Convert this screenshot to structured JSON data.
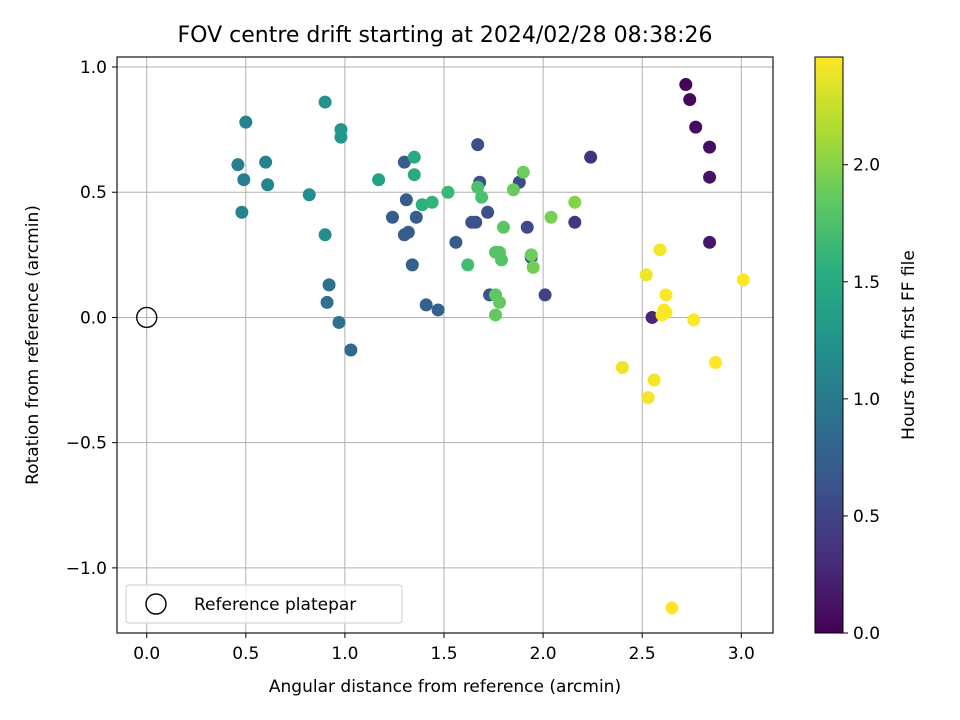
{
  "chart_data": {
    "type": "scatter",
    "title": "FOV centre drift starting at 2024/02/28 08:38:26",
    "xlabel": "Angular distance from reference (arcmin)",
    "ylabel": "Rotation from reference (arcmin)",
    "xlim": [
      -0.15,
      3.16
    ],
    "ylim": [
      -1.26,
      1.04
    ],
    "xticks": [
      0.0,
      0.5,
      1.0,
      1.5,
      2.0,
      2.5,
      3.0
    ],
    "xtick_labels": [
      "0.0",
      "0.5",
      "1.0",
      "1.5",
      "2.0",
      "2.5",
      "3.0"
    ],
    "yticks": [
      -1.0,
      -0.5,
      0.0,
      0.5,
      1.0
    ],
    "ytick_labels": [
      "−1.0",
      "−0.5",
      "0.0",
      "0.5",
      "1.0"
    ],
    "grid": true,
    "colormap": "viridis",
    "colorbar": {
      "label": "Hours from first FF file",
      "min": 0.0,
      "max": 2.46,
      "ticks": [
        0.0,
        0.5,
        1.0,
        1.5,
        2.0
      ],
      "tick_labels": [
        "0.0",
        "0.5",
        "1.0",
        "1.5",
        "2.0"
      ]
    },
    "reference": {
      "label": "Reference platepar",
      "x": 0.0,
      "y": 0.0
    },
    "legend": {
      "entries": [
        "Reference platepar"
      ],
      "location": "lower-left"
    },
    "points": [
      {
        "x": 2.72,
        "y": 0.93,
        "h": 0.02
      },
      {
        "x": 2.74,
        "y": 0.87,
        "h": 0.05
      },
      {
        "x": 2.77,
        "y": 0.76,
        "h": 0.08
      },
      {
        "x": 2.84,
        "y": 0.68,
        "h": 0.1
      },
      {
        "x": 2.84,
        "y": 0.56,
        "h": 0.12
      },
      {
        "x": 2.84,
        "y": 0.3,
        "h": 0.15
      },
      {
        "x": 2.55,
        "y": 0.0,
        "h": 0.25
      },
      {
        "x": 2.24,
        "y": 0.64,
        "h": 0.35
      },
      {
        "x": 2.16,
        "y": 0.38,
        "h": 0.4
      },
      {
        "x": 2.01,
        "y": 0.09,
        "h": 0.5
      },
      {
        "x": 1.94,
        "y": 0.24,
        "h": 0.55
      },
      {
        "x": 1.92,
        "y": 0.36,
        "h": 0.55
      },
      {
        "x": 1.88,
        "y": 0.54,
        "h": 0.55
      },
      {
        "x": 1.67,
        "y": 0.69,
        "h": 0.6
      },
      {
        "x": 1.68,
        "y": 0.54,
        "h": 0.6
      },
      {
        "x": 1.72,
        "y": 0.42,
        "h": 0.6
      },
      {
        "x": 1.64,
        "y": 0.38,
        "h": 0.62
      },
      {
        "x": 1.66,
        "y": 0.38,
        "h": 0.62
      },
      {
        "x": 1.73,
        "y": 0.09,
        "h": 0.65
      },
      {
        "x": 1.56,
        "y": 0.3,
        "h": 0.7
      },
      {
        "x": 1.47,
        "y": 0.03,
        "h": 0.75
      },
      {
        "x": 1.41,
        "y": 0.05,
        "h": 0.75
      },
      {
        "x": 1.3,
        "y": 0.62,
        "h": 0.7
      },
      {
        "x": 1.31,
        "y": 0.47,
        "h": 0.7
      },
      {
        "x": 1.24,
        "y": 0.4,
        "h": 0.7
      },
      {
        "x": 1.36,
        "y": 0.4,
        "h": 0.72
      },
      {
        "x": 1.32,
        "y": 0.34,
        "h": 0.72
      },
      {
        "x": 1.3,
        "y": 0.33,
        "h": 0.72
      },
      {
        "x": 1.34,
        "y": 0.21,
        "h": 0.75
      },
      {
        "x": 1.03,
        "y": -0.13,
        "h": 0.85
      },
      {
        "x": 0.97,
        "y": -0.02,
        "h": 0.9
      },
      {
        "x": 0.91,
        "y": 0.06,
        "h": 0.9
      },
      {
        "x": 0.92,
        "y": 0.13,
        "h": 0.9
      },
      {
        "x": 0.46,
        "y": 0.61,
        "h": 1.05
      },
      {
        "x": 0.49,
        "y": 0.55,
        "h": 1.05
      },
      {
        "x": 0.5,
        "y": 0.78,
        "h": 1.1
      },
      {
        "x": 0.6,
        "y": 0.62,
        "h": 1.1
      },
      {
        "x": 0.61,
        "y": 0.53,
        "h": 1.12
      },
      {
        "x": 0.48,
        "y": 0.42,
        "h": 1.12
      },
      {
        "x": 0.82,
        "y": 0.49,
        "h": 1.2
      },
      {
        "x": 0.9,
        "y": 0.33,
        "h": 1.2
      },
      {
        "x": 0.9,
        "y": 0.86,
        "h": 1.25
      },
      {
        "x": 0.98,
        "y": 0.72,
        "h": 1.3
      },
      {
        "x": 0.98,
        "y": 0.75,
        "h": 1.3
      },
      {
        "x": 1.17,
        "y": 0.55,
        "h": 1.4
      },
      {
        "x": 1.35,
        "y": 0.64,
        "h": 1.5
      },
      {
        "x": 1.35,
        "y": 0.57,
        "h": 1.5
      },
      {
        "x": 1.39,
        "y": 0.45,
        "h": 1.55
      },
      {
        "x": 1.44,
        "y": 0.46,
        "h": 1.6
      },
      {
        "x": 1.52,
        "y": 0.5,
        "h": 1.65
      },
      {
        "x": 1.62,
        "y": 0.21,
        "h": 1.7
      },
      {
        "x": 1.67,
        "y": 0.52,
        "h": 1.75
      },
      {
        "x": 1.69,
        "y": 0.48,
        "h": 1.75
      },
      {
        "x": 1.76,
        "y": 0.26,
        "h": 1.8
      },
      {
        "x": 1.78,
        "y": 0.26,
        "h": 1.8
      },
      {
        "x": 1.79,
        "y": 0.23,
        "h": 1.8
      },
      {
        "x": 1.8,
        "y": 0.36,
        "h": 1.82
      },
      {
        "x": 1.76,
        "y": 0.09,
        "h": 1.82
      },
      {
        "x": 1.78,
        "y": 0.06,
        "h": 1.85
      },
      {
        "x": 1.76,
        "y": 0.01,
        "h": 1.85
      },
      {
        "x": 1.85,
        "y": 0.51,
        "h": 1.88
      },
      {
        "x": 1.9,
        "y": 0.58,
        "h": 1.9
      },
      {
        "x": 1.94,
        "y": 0.25,
        "h": 1.9
      },
      {
        "x": 1.95,
        "y": 0.2,
        "h": 1.92
      },
      {
        "x": 2.04,
        "y": 0.4,
        "h": 1.95
      },
      {
        "x": 2.16,
        "y": 0.46,
        "h": 2.0
      },
      {
        "x": 2.4,
        "y": -0.2,
        "h": 2.4
      },
      {
        "x": 2.52,
        "y": 0.17,
        "h": 2.4
      },
      {
        "x": 2.53,
        "y": -0.32,
        "h": 2.42
      },
      {
        "x": 2.56,
        "y": -0.25,
        "h": 2.42
      },
      {
        "x": 2.59,
        "y": 0.27,
        "h": 2.42
      },
      {
        "x": 2.6,
        "y": 0.01,
        "h": 2.45
      },
      {
        "x": 2.61,
        "y": 0.03,
        "h": 2.45
      },
      {
        "x": 2.62,
        "y": 0.02,
        "h": 2.45
      },
      {
        "x": 2.62,
        "y": 0.09,
        "h": 2.45
      },
      {
        "x": 2.65,
        "y": -1.16,
        "h": 2.45
      },
      {
        "x": 2.76,
        "y": -0.01,
        "h": 2.45
      },
      {
        "x": 2.87,
        "y": -0.18,
        "h": 2.46
      },
      {
        "x": 3.01,
        "y": 0.15,
        "h": 2.46
      }
    ]
  }
}
